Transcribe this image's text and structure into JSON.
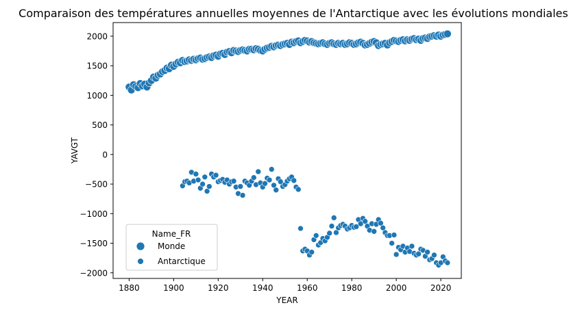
{
  "chart_data": {
    "type": "scatter",
    "title": "Comparaison des températures annuelles moyennes de l'Antarctique avec les évolutions mondiales",
    "xlabel": "YEAR",
    "ylabel": "YAVGT",
    "xlim": [
      1872.8,
      2029.2
    ],
    "ylim": [
      -2095,
      2230
    ],
    "xticks": [
      1880,
      1900,
      1920,
      1940,
      1960,
      1980,
      2000,
      2020
    ],
    "xtick_labels": [
      "1880",
      "1900",
      "1920",
      "1940",
      "1960",
      "1980",
      "2000",
      "2020"
    ],
    "yticks": [
      -2000,
      -1500,
      -1000,
      -500,
      0,
      500,
      1000,
      1500,
      2000
    ],
    "ytick_labels": [
      "−2000",
      "−1500",
      "−1000",
      "−500",
      "0",
      "500",
      "1000",
      "1500",
      "2000"
    ],
    "grid": false,
    "legend": {
      "title": "Name_FR",
      "placement": "lower-left"
    },
    "series": [
      {
        "name": "Monde",
        "color": "#1f77b4",
        "marker_size": "large",
        "x": [
          1880,
          1881,
          1882,
          1883,
          1884,
          1885,
          1886,
          1887,
          1888,
          1889,
          1890,
          1891,
          1892,
          1893,
          1894,
          1895,
          1896,
          1897,
          1898,
          1899,
          1900,
          1901,
          1902,
          1903,
          1904,
          1905,
          1906,
          1907,
          1908,
          1909,
          1910,
          1911,
          1912,
          1913,
          1914,
          1915,
          1916,
          1917,
          1918,
          1919,
          1920,
          1921,
          1922,
          1923,
          1924,
          1925,
          1926,
          1927,
          1928,
          1929,
          1930,
          1931,
          1932,
          1933,
          1934,
          1935,
          1936,
          1937,
          1938,
          1939,
          1940,
          1941,
          1942,
          1943,
          1944,
          1945,
          1946,
          1947,
          1948,
          1949,
          1950,
          1951,
          1952,
          1953,
          1954,
          1955,
          1956,
          1957,
          1958,
          1959,
          1960,
          1961,
          1962,
          1963,
          1964,
          1965,
          1966,
          1967,
          1968,
          1969,
          1970,
          1971,
          1972,
          1973,
          1974,
          1975,
          1976,
          1977,
          1978,
          1979,
          1980,
          1981,
          1982,
          1983,
          1984,
          1985,
          1986,
          1987,
          1988,
          1989,
          1990,
          1991,
          1992,
          1993,
          1994,
          1995,
          1996,
          1997,
          1998,
          1999,
          2000,
          2001,
          2002,
          2003,
          2004,
          2005,
          2006,
          2007,
          2008,
          2009,
          2010,
          2011,
          2012,
          2013,
          2014,
          2015,
          2016,
          2017,
          2018,
          2019,
          2020,
          2021,
          2022,
          2023
        ],
        "y": [
          1140,
          1090,
          1180,
          1150,
          1130,
          1200,
          1160,
          1190,
          1140,
          1210,
          1250,
          1310,
          1290,
          1340,
          1360,
          1400,
          1420,
          1460,
          1450,
          1510,
          1490,
          1530,
          1560,
          1550,
          1590,
          1570,
          1580,
          1600,
          1590,
          1610,
          1600,
          1620,
          1630,
          1610,
          1620,
          1640,
          1650,
          1640,
          1670,
          1680,
          1660,
          1700,
          1710,
          1690,
          1730,
          1740,
          1720,
          1760,
          1750,
          1740,
          1760,
          1770,
          1760,
          1750,
          1780,
          1780,
          1770,
          1790,
          1780,
          1760,
          1750,
          1780,
          1800,
          1810,
          1830,
          1820,
          1840,
          1850,
          1840,
          1860,
          1870,
          1880,
          1860,
          1900,
          1890,
          1910,
          1920,
          1890,
          1910,
          1930,
          1920,
          1900,
          1910,
          1890,
          1880,
          1870,
          1880,
          1890,
          1870,
          1860,
          1880,
          1890,
          1870,
          1860,
          1880,
          1870,
          1880,
          1860,
          1870,
          1890,
          1880,
          1860,
          1870,
          1890,
          1900,
          1880,
          1850,
          1860,
          1880,
          1900,
          1910,
          1890,
          1840,
          1860,
          1870,
          1880,
          1850,
          1890,
          1910,
          1930,
          1920,
          1910,
          1930,
          1940,
          1920,
          1940,
          1930,
          1950,
          1960,
          1940,
          1950,
          1930,
          1960,
          1970,
          1960,
          1990,
          2000,
          2010,
          2000,
          2020,
          2000,
          2020,
          2030,
          2040
        ]
      },
      {
        "name": "Antarctique",
        "color": "#1f77b4",
        "marker_size": "small",
        "x": [
          1904,
          1905,
          1906,
          1907,
          1908,
          1909,
          1910,
          1911,
          1912,
          1913,
          1914,
          1915,
          1916,
          1917,
          1918,
          1919,
          1920,
          1921,
          1922,
          1923,
          1924,
          1925,
          1926,
          1927,
          1928,
          1929,
          1930,
          1931,
          1932,
          1933,
          1934,
          1935,
          1936,
          1937,
          1938,
          1939,
          1940,
          1941,
          1942,
          1943,
          1944,
          1945,
          1946,
          1947,
          1948,
          1949,
          1950,
          1951,
          1952,
          1953,
          1954,
          1955,
          1956,
          1957,
          1958,
          1959,
          1960,
          1961,
          1962,
          1963,
          1964,
          1965,
          1966,
          1967,
          1968,
          1969,
          1970,
          1971,
          1972,
          1973,
          1974,
          1975,
          1976,
          1977,
          1978,
          1979,
          1980,
          1981,
          1982,
          1983,
          1984,
          1985,
          1986,
          1987,
          1988,
          1989,
          1990,
          1991,
          1992,
          1993,
          1994,
          1995,
          1996,
          1997,
          1998,
          1999,
          2000,
          2001,
          2002,
          2003,
          2004,
          2005,
          2006,
          2007,
          2008,
          2009,
          2010,
          2011,
          2012,
          2013,
          2014,
          2015,
          2016,
          2017,
          2018,
          2019,
          2020,
          2021,
          2022,
          2023
        ],
        "y": [
          -530,
          -460,
          -450,
          -480,
          -300,
          -450,
          -330,
          -430,
          -570,
          -500,
          -380,
          -620,
          -540,
          -330,
          -380,
          -350,
          -460,
          -440,
          -420,
          -470,
          -430,
          -500,
          -460,
          -450,
          -550,
          -660,
          -540,
          -690,
          -450,
          -480,
          -520,
          -450,
          -390,
          -510,
          -290,
          -480,
          -550,
          -490,
          -400,
          -430,
          -250,
          -520,
          -600,
          -410,
          -460,
          -540,
          -510,
          -450,
          -410,
          -380,
          -440,
          -550,
          -590,
          -1250,
          -1630,
          -1600,
          -1630,
          -1700,
          -1650,
          -1440,
          -1370,
          -1530,
          -1490,
          -1420,
          -1460,
          -1400,
          -1330,
          -1210,
          -1070,
          -1320,
          -1240,
          -1200,
          -1180,
          -1210,
          -1260,
          -1240,
          -1200,
          -1230,
          -1220,
          -1100,
          -1170,
          -1080,
          -1130,
          -1210,
          -1280,
          -1170,
          -1300,
          -1180,
          -1100,
          -1160,
          -1240,
          -1320,
          -1370,
          -1370,
          -1500,
          -1360,
          -1690,
          -1570,
          -1610,
          -1550,
          -1650,
          -1580,
          -1640,
          -1550,
          -1670,
          -1700,
          -1680,
          -1600,
          -1620,
          -1720,
          -1650,
          -1780,
          -1760,
          -1700,
          -1830,
          -1870,
          -1830,
          -1730,
          -1800,
          -1830
        ]
      }
    ]
  }
}
